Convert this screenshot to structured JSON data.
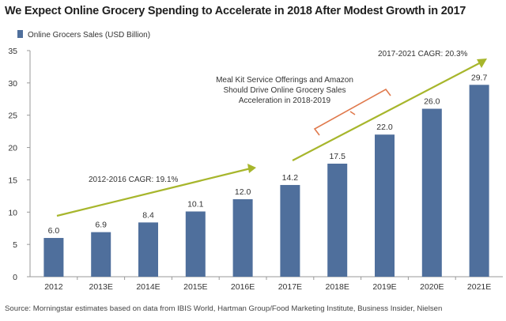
{
  "title": "We Expect Online Grocery Spending to Accelerate in 2018 After Modest Growth in 2017",
  "source": "Source:  Morningstar estimates based on data from IBIS World, Hartman Group/Food Marketing Institute, Business Insider, Nielsen",
  "colors": {
    "bar": "#4f6f9c",
    "arrow": "#a7b62c",
    "bracket": "#e07a4d",
    "axis": "#999999",
    "text": "#333333"
  },
  "chart_data": {
    "type": "bar",
    "categories": [
      "2012",
      "2013E",
      "2014E",
      "2015E",
      "2016E",
      "2017E",
      "2018E",
      "2019E",
      "2020E",
      "2021E"
    ],
    "series": [
      {
        "name": "Online Grocers Sales (USD Billion)",
        "values": [
          6.0,
          6.9,
          8.4,
          10.1,
          12.0,
          14.2,
          17.5,
          22.0,
          26.0,
          29.7
        ],
        "value_labels": [
          "6.0",
          "6.9",
          "8.4",
          "10.1",
          "12.0",
          "14.2",
          "17.5",
          "22.0",
          "26.0",
          "29.7"
        ]
      }
    ],
    "ylim": [
      0,
      35
    ],
    "yticks": [
      0,
      5,
      10,
      15,
      20,
      25,
      30,
      35
    ],
    "grid": false,
    "legend": "top-left",
    "annotations": {
      "cagr_2012_2016": "2012-2016 CAGR: 19.1%",
      "cagr_2017_2021": "2017-2021 CAGR: 20.3%",
      "note_lines": [
        "Meal Kit Service Offerings and Amazon",
        "Should Drive Online Grocery Sales",
        "Acceleration in 2018-2019"
      ]
    }
  }
}
